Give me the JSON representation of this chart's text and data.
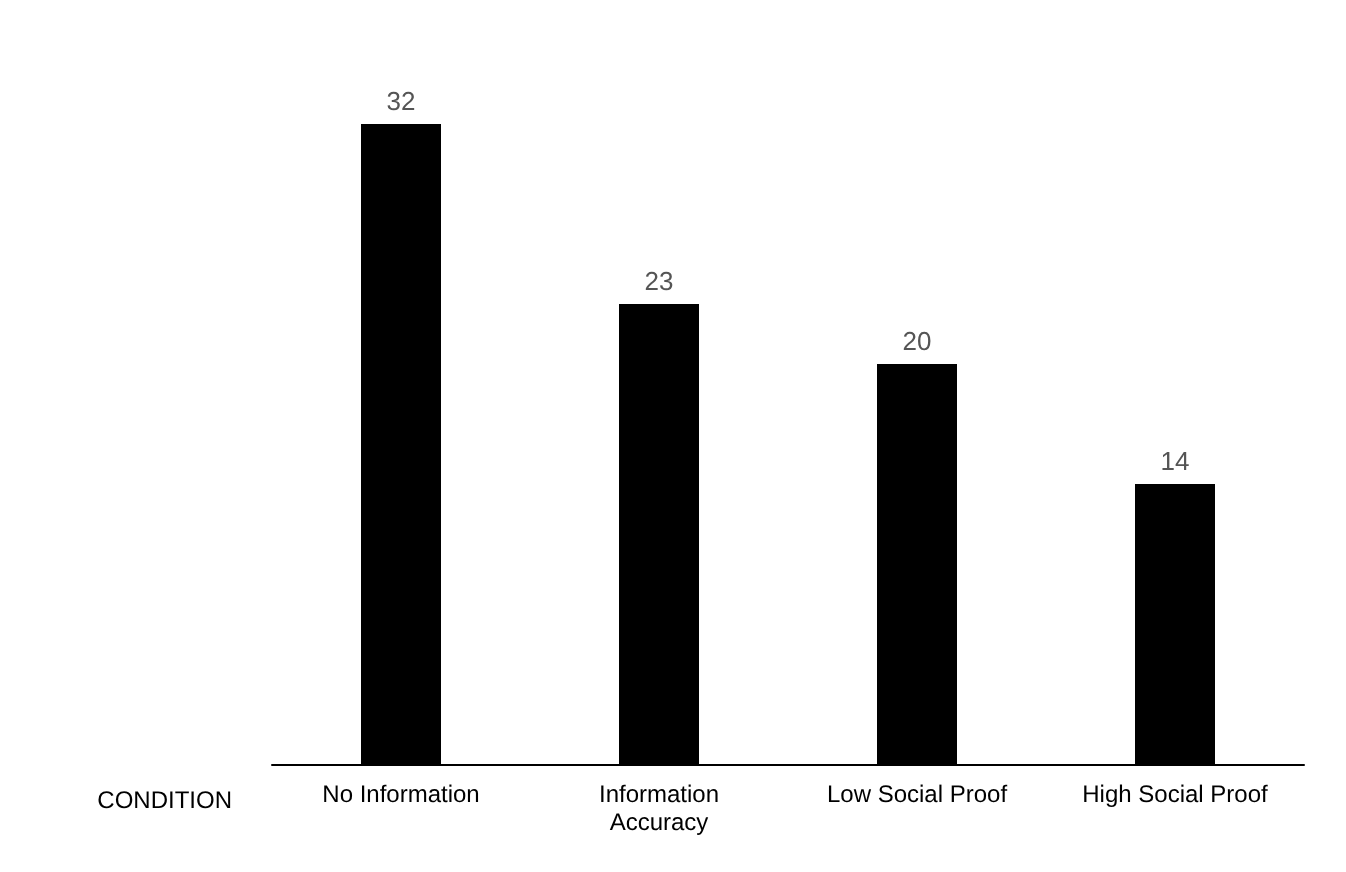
{
  "chart_data": {
    "type": "bar",
    "xlabel": "CONDITION",
    "categories": [
      "No Information",
      "Information\nAccuracy",
      "Low Social Proof",
      "High Social Proof"
    ],
    "values": [
      32,
      23,
      20,
      14
    ],
    "color": "#000000",
    "tick_labels": "x",
    "data_labels": true,
    "grid": false
  }
}
